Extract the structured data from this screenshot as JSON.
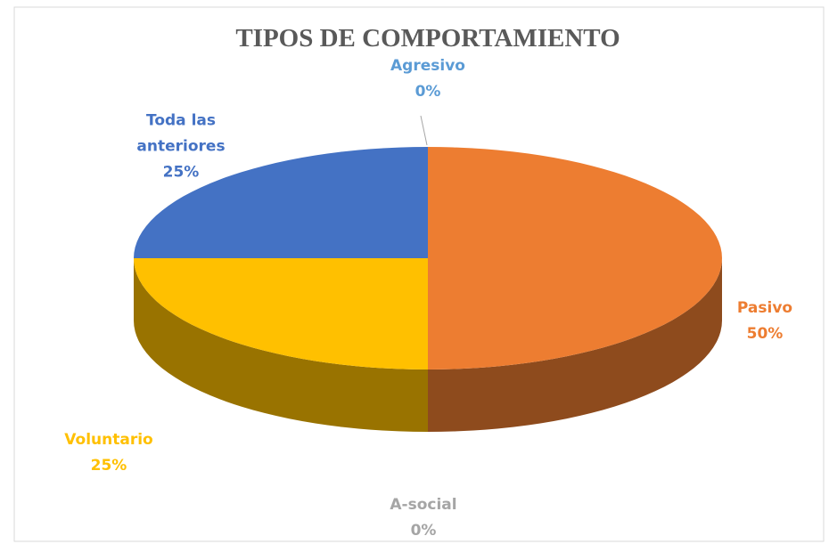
{
  "chart_data": {
    "type": "pie3d",
    "title": "TIPOS DE COMPORTAMIENTO",
    "categories": [
      "Agresivo",
      "Pasivo",
      "A-social",
      "Voluntario",
      "Toda las anteriores"
    ],
    "values": [
      0,
      50,
      0,
      25,
      25
    ],
    "value_labels": [
      "0%",
      "50%",
      "0%",
      "25%",
      "25%"
    ],
    "colors": [
      "#5b9bd5",
      "#ed7d31",
      "#a5a5a5",
      "#ffc000",
      "#4472c4"
    ]
  }
}
